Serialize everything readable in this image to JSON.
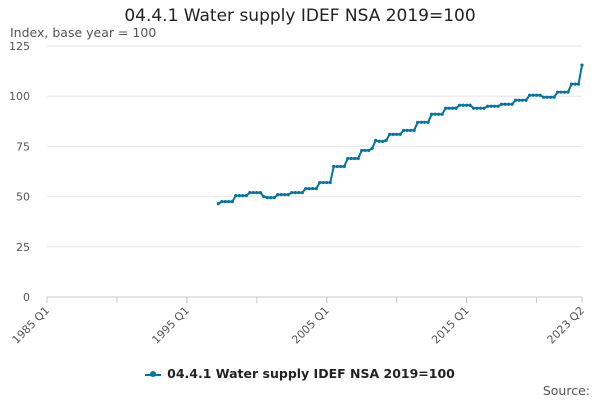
{
  "chart_data": {
    "type": "line",
    "title": "04.4.1 Water supply IDEF NSA 2019=100",
    "ylabel": "Index, base year = 100",
    "xlabel": "",
    "ylim": [
      0,
      125
    ],
    "y_ticks": [
      "0",
      "25",
      "50",
      "75",
      "100",
      "125"
    ],
    "x_range": [
      "1985 Q1",
      "2023 Q2"
    ],
    "x_tick_labels": [
      "1985 Q1",
      "1995 Q1",
      "2005 Q1",
      "2015 Q1",
      "2023 Q2"
    ],
    "grid": true,
    "legend_position": "bottom",
    "color": "#0075a3",
    "series": [
      {
        "name": "04.4.1 Water supply IDEF NSA 2019=100",
        "x": [
          "1997 Q2",
          "1997 Q3",
          "1997 Q4",
          "1998 Q1",
          "1998 Q2",
          "1998 Q3",
          "1998 Q4",
          "1999 Q1",
          "1999 Q2",
          "1999 Q3",
          "1999 Q4",
          "2000 Q1",
          "2000 Q2",
          "2000 Q3",
          "2000 Q4",
          "2001 Q1",
          "2001 Q2",
          "2001 Q3",
          "2001 Q4",
          "2002 Q1",
          "2002 Q2",
          "2002 Q3",
          "2002 Q4",
          "2003 Q1",
          "2003 Q2",
          "2003 Q3",
          "2003 Q4",
          "2004 Q1",
          "2004 Q2",
          "2004 Q3",
          "2004 Q4",
          "2005 Q1",
          "2005 Q2",
          "2005 Q3",
          "2005 Q4",
          "2006 Q1",
          "2006 Q2",
          "2006 Q3",
          "2006 Q4",
          "2007 Q1",
          "2007 Q2",
          "2007 Q3",
          "2007 Q4",
          "2008 Q1",
          "2008 Q2",
          "2008 Q3",
          "2008 Q4",
          "2009 Q1",
          "2009 Q2",
          "2009 Q3",
          "2009 Q4",
          "2010 Q1",
          "2010 Q2",
          "2010 Q3",
          "2010 Q4",
          "2011 Q1",
          "2011 Q2",
          "2011 Q3",
          "2011 Q4",
          "2012 Q1",
          "2012 Q2",
          "2012 Q3",
          "2012 Q4",
          "2013 Q1",
          "2013 Q2",
          "2013 Q3",
          "2013 Q4",
          "2014 Q1",
          "2014 Q2",
          "2014 Q3",
          "2014 Q4",
          "2015 Q1",
          "2015 Q2",
          "2015 Q3",
          "2015 Q4",
          "2016 Q1",
          "2016 Q2",
          "2016 Q3",
          "2016 Q4",
          "2017 Q1",
          "2017 Q2",
          "2017 Q3",
          "2017 Q4",
          "2018 Q1",
          "2018 Q2",
          "2018 Q3",
          "2018 Q4",
          "2019 Q1",
          "2019 Q2",
          "2019 Q3",
          "2019 Q4",
          "2020 Q1",
          "2020 Q2",
          "2020 Q3",
          "2020 Q4",
          "2021 Q1",
          "2021 Q2",
          "2021 Q3",
          "2021 Q4",
          "2022 Q1",
          "2022 Q2",
          "2022 Q3",
          "2022 Q4",
          "2023 Q1",
          "2023 Q2"
        ],
        "values": [
          46.5,
          47.5,
          47.5,
          47.5,
          47.5,
          50.5,
          50.5,
          50.5,
          50.5,
          52,
          52,
          52,
          52,
          50,
          49.5,
          49.5,
          49.5,
          51,
          51,
          51,
          51,
          52,
          52,
          52,
          52,
          54,
          54,
          54,
          54,
          57,
          57,
          57,
          57,
          65,
          65,
          65,
          65,
          69,
          69,
          69,
          69,
          73,
          73,
          73,
          74,
          78,
          77.5,
          77.5,
          78,
          81,
          81,
          81,
          81,
          83,
          83,
          83,
          83,
          87,
          87,
          87,
          87,
          91,
          91,
          91,
          91,
          94,
          94,
          94,
          94,
          95.5,
          95.5,
          95.5,
          95.5,
          94,
          94,
          94,
          94,
          95,
          95,
          95,
          95,
          96,
          96,
          96,
          96,
          98,
          98,
          98,
          98,
          100.5,
          100.5,
          100.5,
          100.5,
          99.5,
          99.5,
          99.5,
          99.5,
          102,
          102,
          102,
          102,
          106,
          106,
          106,
          115.5
        ]
      }
    ]
  },
  "footer": {
    "source_label": "Source:"
  }
}
